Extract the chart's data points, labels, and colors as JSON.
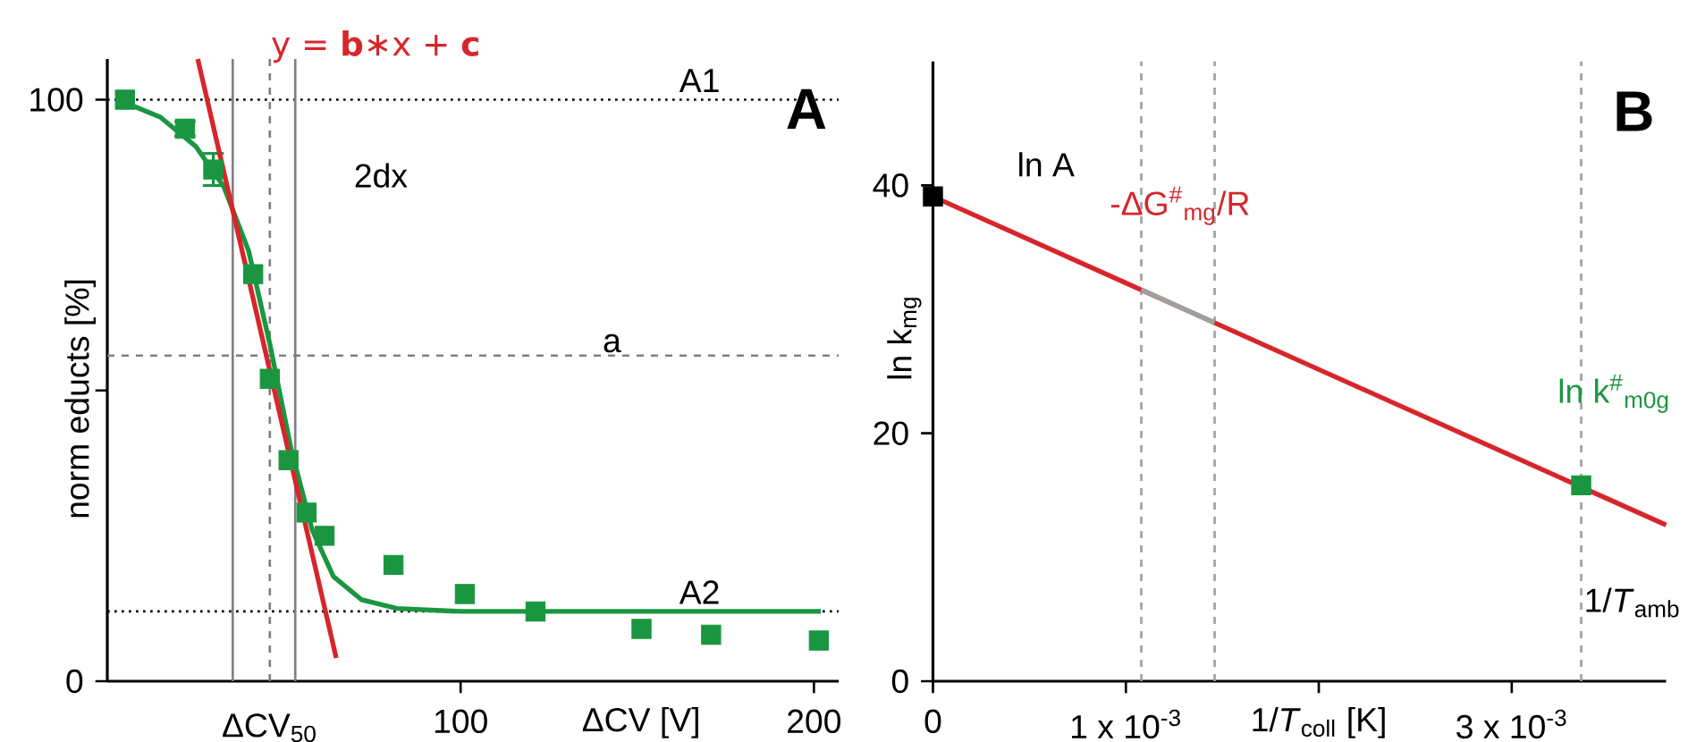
{
  "chart_data": [
    {
      "type": "scatter",
      "title": "A",
      "xlabel": "ΔCV [V]",
      "ylabel": "norm educts [%]",
      "xlim": [
        0,
        207
      ],
      "ylim": [
        0,
        107
      ],
      "xticks": [
        100,
        200
      ],
      "yticks": [
        0,
        {
          "value": 50,
          "label": null
        },
        100
      ],
      "series": [
        {
          "color": "#1a9641",
          "marker": "square",
          "x": [
            5,
            22,
            30,
            41.3,
            46,
            51.3,
            56.4,
            61.5,
            81,
            101.2,
            121.2,
            151.2,
            170.9,
            201.4
          ],
          "values": [
            100,
            95,
            88,
            70,
            52,
            38,
            29,
            25,
            20,
            15,
            12,
            9,
            8,
            7
          ],
          "errors": [
            null,
            1.5,
            3,
            null,
            null,
            null,
            null,
            null,
            null,
            null,
            null,
            null,
            null,
            null
          ]
        },
        {
          "type": "line",
          "color": "#1a9641",
          "x": [
            3,
            15,
            25,
            33,
            40,
            46,
            52,
            58,
            64,
            72,
            82,
            100,
            202
          ],
          "values": [
            100,
            97,
            92,
            85,
            74,
            58,
            40,
            26,
            18,
            14,
            12.5,
            12,
            12
          ]
        },
        {
          "type": "line",
          "color": "#d7262b",
          "x": [
            25.6,
            64.8
          ],
          "values": [
            107,
            4
          ]
        }
      ],
      "ref_lines": [
        {
          "axis": "y",
          "value": 100,
          "label": "A1",
          "color": "#000000",
          "line_style": "dotted"
        },
        {
          "axis": "y",
          "value": 12,
          "label": "A2",
          "color": "#000000",
          "line_style": "dotted"
        },
        {
          "axis": "x",
          "value": 35.5,
          "color": "#808080",
          "line_style": "solid"
        },
        {
          "axis": "x",
          "value": 53.2,
          "color": "#808080",
          "line_style": "solid"
        },
        {
          "axis": "x",
          "value": 46,
          "color": "#808080",
          "line_style": "dashed"
        },
        {
          "axis": "y",
          "value": 56,
          "color": "#808080",
          "line_style": "dashed"
        }
      ],
      "annotations": [
        "y = **b**∗x + **c**",
        "2dx",
        "a",
        "ΔCV$_{50}$"
      ]
    },
    {
      "type": "line",
      "title": "B",
      "xlabel": "1/*T*$_{coll}$ [K]",
      "ylabel": "ln k$_{mg}$",
      "xlim": [
        0,
        0.0038
      ],
      "ylim": [
        0,
        50
      ],
      "xticks": [
        0,
        {
          "value": 0.001,
          "label": "1 x 10$^{-3}$"
        },
        {
          "value": 0.002,
          "label": null
        },
        {
          "value": 0.003,
          "label": "3 x 10$^{-3}$"
        }
      ],
      "yticks": [
        0,
        20,
        40
      ],
      "series": [
        {
          "color": "#d7262b",
          "x": [
            0,
            0.0038
          ],
          "values": [
            39.1,
            12.6
          ]
        },
        {
          "color": "#a0a0a0",
          "x": [
            0.00108,
            0.00146
          ],
          "values": [
            31.6,
            28.9
          ]
        },
        {
          "type": "scatter",
          "marker": "square",
          "color": "#000000",
          "x": [
            0
          ],
          "values": [
            39.1
          ]
        },
        {
          "type": "scatter",
          "marker": "square",
          "color": "#1a9641",
          "x": [
            0.00336
          ],
          "values": [
            15.8
          ]
        }
      ],
      "ref_lines": [
        {
          "axis": "x",
          "value": 0.00108,
          "color": "#a0a0a0",
          "line_style": "dashed"
        },
        {
          "axis": "x",
          "value": 0.00146,
          "color": "#a0a0a0",
          "line_style": "dashed"
        },
        {
          "axis": "x",
          "value": 0.00336,
          "color": "#a0a0a0",
          "line_style": "dashed"
        }
      ],
      "annotations": [
        "ln A",
        "-ΔG$^{#}$$_{mg}$/R",
        "ln k$^{#}$$_{m0g}$",
        "1/*T*$_{amb}$"
      ]
    }
  ]
}
